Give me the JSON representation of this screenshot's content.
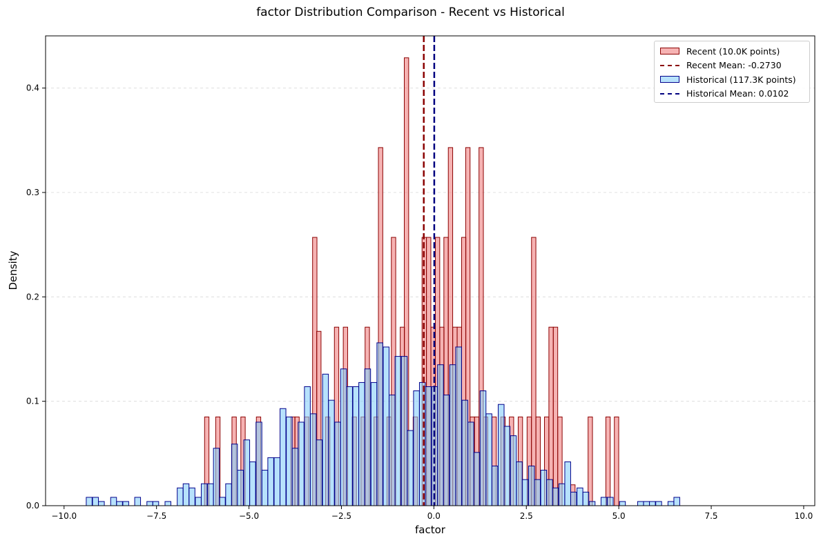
{
  "chart_data": {
    "type": "histogram",
    "title": "factor Distribution Comparison - Recent vs Historical",
    "xlabel": "factor",
    "ylabel": "Density",
    "xlim": [
      -10.5,
      10.3
    ],
    "ylim": [
      0,
      0.45
    ],
    "x_ticks": [
      -10.0,
      -7.5,
      -5.0,
      -2.5,
      0.0,
      2.5,
      5.0,
      7.5,
      10.0
    ],
    "x_tick_labels": [
      "−10.0",
      "−7.5",
      "−5.0",
      "−2.5",
      "0.0",
      "2.5",
      "5.0",
      "7.5",
      "10.0"
    ],
    "y_ticks": [
      0.0,
      0.1,
      0.2,
      0.3,
      0.4
    ],
    "y_tick_labels": [
      "0.0",
      "0.1",
      "0.2",
      "0.3",
      "0.4"
    ],
    "grid": "y-dashed",
    "legend_position": "top-right",
    "colors": {
      "recent_fill": "#f08080",
      "recent_edge": "#8b0000",
      "historical_fill": "#87cefa",
      "historical_edge": "#00008b",
      "recent_mean": "#8b0000",
      "historical_mean": "#000080"
    },
    "series": [
      {
        "name": "Recent (10.0K points)",
        "bin_width": 0.1183,
        "bins": [
          [
            -6.2,
            0.085
          ],
          [
            -5.9,
            0.085
          ],
          [
            -5.46,
            0.085
          ],
          [
            -5.22,
            0.085
          ],
          [
            -4.8,
            0.085
          ],
          [
            -3.87,
            0.085
          ],
          [
            -3.76,
            0.085
          ],
          [
            -3.5,
            0.085
          ],
          [
            -3.28,
            0.257
          ],
          [
            -3.17,
            0.167
          ],
          [
            -2.93,
            0.085
          ],
          [
            -2.69,
            0.171
          ],
          [
            -2.45,
            0.171
          ],
          [
            -2.21,
            0.085
          ],
          [
            -1.97,
            0.085
          ],
          [
            -1.86,
            0.171
          ],
          [
            -1.62,
            0.085
          ],
          [
            -1.5,
            0.343
          ],
          [
            -1.27,
            0.085
          ],
          [
            -1.15,
            0.257
          ],
          [
            -0.91,
            0.171
          ],
          [
            -0.8,
            0.429
          ],
          [
            -0.56,
            0.085
          ],
          [
            -0.32,
            0.257
          ],
          [
            -0.2,
            0.257
          ],
          [
            -0.08,
            0.171
          ],
          [
            0.04,
            0.257
          ],
          [
            0.16,
            0.171
          ],
          [
            0.27,
            0.257
          ],
          [
            0.39,
            0.343
          ],
          [
            0.51,
            0.171
          ],
          [
            0.63,
            0.171
          ],
          [
            0.75,
            0.257
          ],
          [
            0.86,
            0.343
          ],
          [
            0.98,
            0.085
          ],
          [
            1.1,
            0.085
          ],
          [
            1.22,
            0.343
          ],
          [
            1.34,
            0.085
          ],
          [
            1.57,
            0.085
          ],
          [
            1.81,
            0.085
          ],
          [
            2.04,
            0.085
          ],
          [
            2.28,
            0.085
          ],
          [
            2.52,
            0.085
          ],
          [
            2.64,
            0.257
          ],
          [
            2.76,
            0.085
          ],
          [
            2.99,
            0.085
          ],
          [
            3.11,
            0.171
          ],
          [
            3.23,
            0.171
          ],
          [
            3.35,
            0.085
          ],
          [
            3.7,
            0.02
          ],
          [
            4.17,
            0.085
          ],
          [
            4.65,
            0.085
          ],
          [
            4.88,
            0.085
          ]
        ]
      },
      {
        "name": "Historical (117.3K points)",
        "bin_width": 0.1583,
        "bins": [
          [
            -9.4,
            0.008
          ],
          [
            -9.23,
            0.008
          ],
          [
            -9.07,
            0.004
          ],
          [
            -8.74,
            0.008
          ],
          [
            -8.58,
            0.004
          ],
          [
            -8.41,
            0.004
          ],
          [
            -8.09,
            0.008
          ],
          [
            -7.76,
            0.004
          ],
          [
            -7.6,
            0.004
          ],
          [
            -7.27,
            0.004
          ],
          [
            -6.94,
            0.017
          ],
          [
            -6.78,
            0.021
          ],
          [
            -6.62,
            0.017
          ],
          [
            -6.45,
            0.008
          ],
          [
            -6.29,
            0.021
          ],
          [
            -6.12,
            0.021
          ],
          [
            -5.96,
            0.055
          ],
          [
            -5.8,
            0.008
          ],
          [
            -5.63,
            0.021
          ],
          [
            -5.47,
            0.059
          ],
          [
            -5.31,
            0.034
          ],
          [
            -5.14,
            0.063
          ],
          [
            -4.98,
            0.042
          ],
          [
            -4.81,
            0.08
          ],
          [
            -4.65,
            0.034
          ],
          [
            -4.49,
            0.046
          ],
          [
            -4.32,
            0.046
          ],
          [
            -4.16,
            0.093
          ],
          [
            -3.99,
            0.085
          ],
          [
            -3.83,
            0.055
          ],
          [
            -3.67,
            0.08
          ],
          [
            -3.5,
            0.114
          ],
          [
            -3.34,
            0.088
          ],
          [
            -3.18,
            0.063
          ],
          [
            -3.01,
            0.126
          ],
          [
            -2.85,
            0.101
          ],
          [
            -2.68,
            0.08
          ],
          [
            -2.52,
            0.131
          ],
          [
            -2.36,
            0.114
          ],
          [
            -2.19,
            0.114
          ],
          [
            -2.03,
            0.118
          ],
          [
            -1.87,
            0.131
          ],
          [
            -1.7,
            0.118
          ],
          [
            -1.54,
            0.156
          ],
          [
            -1.37,
            0.152
          ],
          [
            -1.21,
            0.106
          ],
          [
            -1.05,
            0.143
          ],
          [
            -0.88,
            0.143
          ],
          [
            -0.72,
            0.072
          ],
          [
            -0.55,
            0.11
          ],
          [
            -0.39,
            0.118
          ],
          [
            -0.23,
            0.114
          ],
          [
            -0.06,
            0.114
          ],
          [
            0.1,
            0.135
          ],
          [
            0.26,
            0.106
          ],
          [
            0.43,
            0.135
          ],
          [
            0.59,
            0.152
          ],
          [
            0.76,
            0.101
          ],
          [
            0.92,
            0.08
          ],
          [
            1.08,
            0.051
          ],
          [
            1.25,
            0.11
          ],
          [
            1.41,
            0.088
          ],
          [
            1.57,
            0.038
          ],
          [
            1.74,
            0.097
          ],
          [
            1.9,
            0.076
          ],
          [
            2.07,
            0.067
          ],
          [
            2.23,
            0.042
          ],
          [
            2.39,
            0.025
          ],
          [
            2.56,
            0.038
          ],
          [
            2.72,
            0.025
          ],
          [
            2.89,
            0.034
          ],
          [
            3.05,
            0.025
          ],
          [
            3.21,
            0.017
          ],
          [
            3.38,
            0.021
          ],
          [
            3.54,
            0.042
          ],
          [
            3.7,
            0.013
          ],
          [
            3.87,
            0.017
          ],
          [
            4.03,
            0.013
          ],
          [
            4.2,
            0.004
          ],
          [
            4.52,
            0.008
          ],
          [
            4.69,
            0.008
          ],
          [
            5.02,
            0.004
          ],
          [
            5.51,
            0.004
          ],
          [
            5.67,
            0.004
          ],
          [
            5.83,
            0.004
          ],
          [
            6.0,
            0.004
          ],
          [
            6.33,
            0.004
          ],
          [
            6.49,
            0.008
          ]
        ]
      }
    ],
    "mean_lines": [
      {
        "name": "Recent Mean: -0.2730",
        "value": -0.273,
        "color": "#8b0000"
      },
      {
        "name": "Historical Mean: 0.0102",
        "value": 0.0102,
        "color": "#000080"
      }
    ]
  }
}
